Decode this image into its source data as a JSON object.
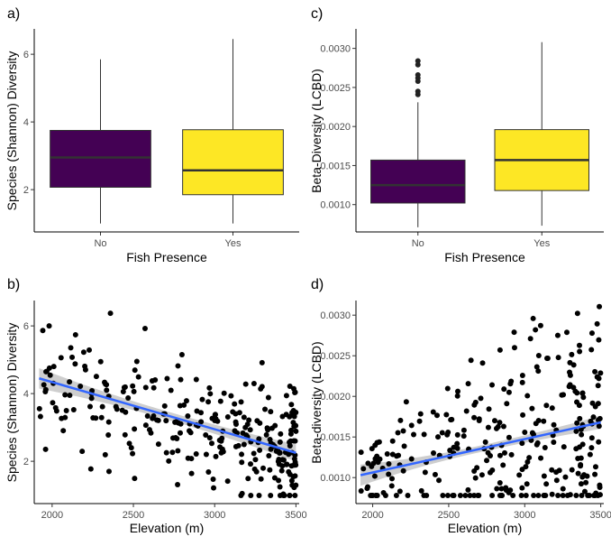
{
  "chart_data": [
    {
      "panel": "a)",
      "type": "box",
      "xlabel": "Fish Presence",
      "ylabel": "Species (Shannon) Diversity",
      "categories": [
        "No",
        "Yes"
      ],
      "yticks": [
        "2",
        "4",
        "6"
      ],
      "ylim": [
        0.75,
        6.75
      ],
      "boxes": [
        {
          "category": "No",
          "min": 1.0,
          "q1": 2.07,
          "median": 2.95,
          "q3": 3.75,
          "max": 5.85,
          "outliers": [],
          "color": "#440154"
        },
        {
          "category": "Yes",
          "min": 1.0,
          "q1": 1.85,
          "median": 2.57,
          "q3": 3.77,
          "max": 6.45,
          "outliers": [],
          "color": "#FDE725"
        }
      ]
    },
    {
      "panel": "c)",
      "type": "box",
      "xlabel": "Fish Presence",
      "ylabel": "Beta-Diversity (LCBD)",
      "categories": [
        "No",
        "Yes"
      ],
      "yticks": [
        "0.0010",
        "0.0015",
        "0.0020",
        "0.0025",
        "0.0030"
      ],
      "ylim": [
        0.00065,
        0.00325
      ],
      "boxes": [
        {
          "category": "No",
          "min": 0.00071,
          "q1": 0.00102,
          "median": 0.00125,
          "q3": 0.00157,
          "max": 0.00231,
          "outliers": [
            0.00241,
            0.00245,
            0.00258,
            0.00262,
            0.00266,
            0.00279,
            0.00284
          ],
          "color": "#440154"
        },
        {
          "category": "Yes",
          "min": 0.00073,
          "q1": 0.00118,
          "median": 0.00157,
          "q3": 0.00196,
          "max": 0.00308,
          "outliers": [],
          "color": "#FDE725"
        }
      ]
    },
    {
      "panel": "b)",
      "type": "scatter",
      "xlabel": "Elevation (m)",
      "ylabel": "Species (Shannon) Diversity",
      "xticks": [
        "2000",
        "2500",
        "3000",
        "3500"
      ],
      "yticks": [
        "2",
        "4",
        "6"
      ],
      "xlim": [
        1890,
        3520
      ],
      "ylim": [
        0.75,
        6.75
      ],
      "trend": {
        "x0": 1920,
        "y0": 4.45,
        "x1": 3500,
        "y1": 2.25,
        "se0": 0.3,
        "se_mid": 0.12,
        "se1": 0.25,
        "color": "#3366FF"
      },
      "n_points": 290,
      "seed": 7
    },
    {
      "panel": "d)",
      "type": "scatter",
      "xlabel": "Elevation (m)",
      "ylabel": "Beta-diversity (LCBD)",
      "xticks": [
        "2000",
        "2500",
        "3000",
        "3500"
      ],
      "yticks": [
        "0.0010",
        "0.0015",
        "0.0020",
        "0.0025",
        "0.0030"
      ],
      "xlim": [
        1890,
        3520
      ],
      "ylim": [
        0.00068,
        0.00318
      ],
      "trend": {
        "x0": 1920,
        "y0": 0.00103,
        "x1": 3500,
        "y1": 0.00168,
        "se0": 0.00013,
        "se_mid": 4e-05,
        "se1": 8e-05,
        "color": "#3366FF"
      },
      "n_points": 290,
      "seed": 13
    }
  ]
}
